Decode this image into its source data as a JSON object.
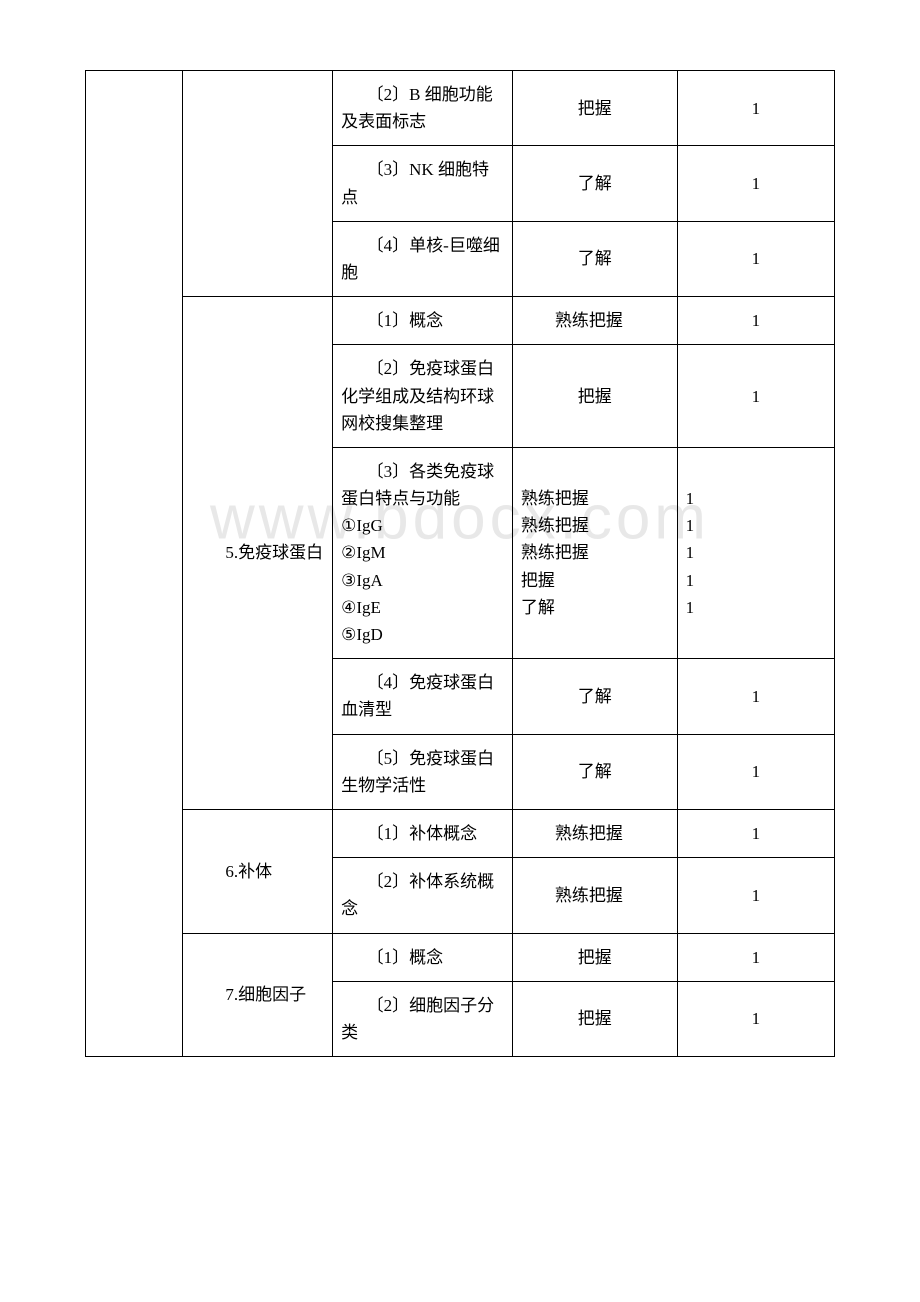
{
  "watermark": "www.bdocx.com",
  "sections": {
    "s5": {
      "label": "　　5.免疫球蛋白"
    },
    "s6": {
      "label": "　　6.补体"
    },
    "s7": {
      "label": "　　7.细胞因子"
    }
  },
  "rows": {
    "r1": {
      "c3": "　　〔2〕B 细胞功能及表面标志",
      "c4": "把握",
      "c5": "1"
    },
    "r2": {
      "c3": "　　〔3〕NK 细胞特点",
      "c4": "了解",
      "c5": "1"
    },
    "r3": {
      "c3": "　　〔4〕单核-巨噬细胞",
      "c4": "了解",
      "c5": "1"
    },
    "r4": {
      "c3": "　　〔1〕概念",
      "c4": "　　熟练把握",
      "c5": "1"
    },
    "r5": {
      "c3": "　　〔2〕免疫球蛋白化学组成及结构环球网校搜集整理",
      "c4": "把握",
      "c5": "1"
    },
    "r6": {
      "c3": "　　〔3〕各类免疫球蛋白特点与功能\n①IgG\n②IgM\n③IgA\n④IgE\n⑤IgD",
      "c4": "熟练把握\n熟练把握\n熟练把握\n把握\n了解",
      "c5": "1\n1\n1\n1\n1"
    },
    "r7": {
      "c3": "　　〔4〕免疫球蛋白血清型",
      "c4": "了解",
      "c5": "1"
    },
    "r8": {
      "c3": "　　〔5〕免疫球蛋白生物学活性",
      "c4": "了解",
      "c5": "1"
    },
    "r9": {
      "c3": "　　〔1〕补体概念",
      "c4": "　　熟练把握",
      "c5": "1"
    },
    "r10": {
      "c3": "　　〔2〕补体系统概念",
      "c4": "　　熟练把握",
      "c5": "1"
    },
    "r11": {
      "c3": "　　〔1〕概念",
      "c4": "把握",
      "c5": "1"
    },
    "r12": {
      "c3": "　　〔2〕细胞因子分类",
      "c4": "把握",
      "c5": "1"
    }
  }
}
